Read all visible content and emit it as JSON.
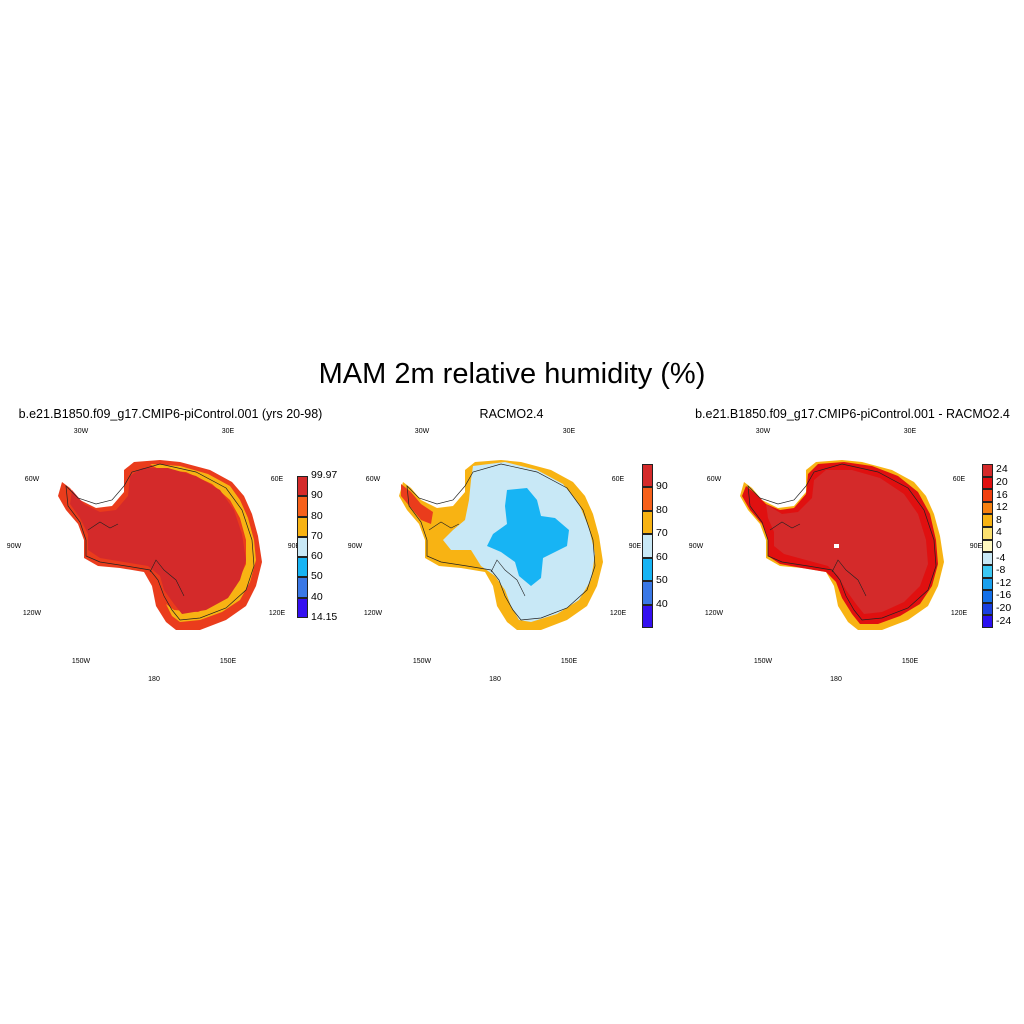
{
  "title": "MAM 2m relative humidity (%)",
  "colors": {
    "dark_red": "#d42a2a",
    "red": "#ea3c1c",
    "orange_red": "#f6601a",
    "orange": "#f8b313",
    "light_blue": "#c8e8f6",
    "cyan": "#17b4f4",
    "blue": "#3a78e6",
    "violet": "#3410f0"
  },
  "panels": [
    {
      "title": "b.e21.B1850.f09_g17.CMIP6-piControl.001 (yrs 20-98)",
      "lon_labels": [
        "30W",
        "30E",
        "60W",
        "60E",
        "90W",
        "90E",
        "120W",
        "120E",
        "150W",
        "150E",
        "180"
      ],
      "colorbar": {
        "colors": [
          "#3410f0",
          "#3a78e6",
          "#17b4f4",
          "#c8e8f6",
          "#f8b313",
          "#f6601a",
          "#d42a2a"
        ],
        "labels": [
          "14.15",
          "40",
          "50",
          "60",
          "70",
          "80",
          "90",
          "99.97"
        ]
      }
    },
    {
      "title": "RACMO2.4",
      "lon_labels": [
        "30W",
        "30E",
        "60W",
        "60E",
        "90W",
        "90E",
        "120W",
        "120E",
        "150W",
        "150E",
        "180"
      ],
      "colorbar": {
        "colors": [
          "#3410f0",
          "#3a78e6",
          "#17b4f4",
          "#c8e8f6",
          "#f8b313",
          "#f6601a",
          "#d42a2a"
        ],
        "labels": [
          "40",
          "50",
          "60",
          "70",
          "80",
          "90"
        ]
      }
    },
    {
      "title": "b.e21.B1850.f09_g17.CMIP6-piControl.001 - RACMO2.4",
      "lon_labels": [
        "30W",
        "30E",
        "60W",
        "60E",
        "90W",
        "90E",
        "120W",
        "120E",
        "150W",
        "150E",
        "180"
      ],
      "colorbar": {
        "colors": [
          "#2a10f0",
          "#1a40e0",
          "#1470e8",
          "#1aa0ee",
          "#3cc8f4",
          "#c8e8f6",
          "#fff8c0",
          "#fbe070",
          "#f8b313",
          "#f68010",
          "#f04010",
          "#e01010",
          "#d42a2a"
        ],
        "labels": [
          "-24",
          "-20",
          "-16",
          "-12",
          "-8",
          "-4",
          "0",
          "4",
          "8",
          "12",
          "16",
          "20",
          "24"
        ]
      }
    }
  ]
}
